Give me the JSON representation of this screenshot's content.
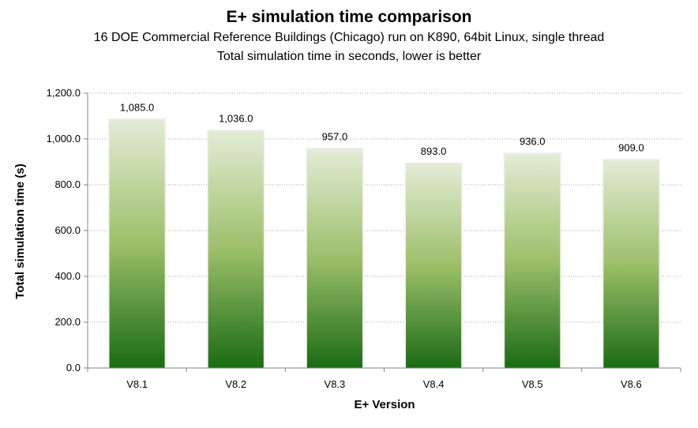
{
  "chart_data": {
    "type": "bar",
    "title": "E+ simulation time comparison",
    "subtitle": [
      "16 DOE Commercial Reference Buildings (Chicago) run on K890, 64bit Linux, single thread",
      "Total simulation time in seconds, lower is better"
    ],
    "xlabel": "E+ Version",
    "ylabel": "Total simulation time (s)",
    "categories": [
      "V8.1",
      "V8.2",
      "V8.3",
      "V8.4",
      "V8.5",
      "V8.6"
    ],
    "values": [
      1085.0,
      1036.0,
      957.0,
      893.0,
      936.0,
      909.0
    ],
    "data_labels": [
      "1,085.0",
      "1,036.0",
      "957.0",
      "893.0",
      "936.0",
      "909.0"
    ],
    "ylim": [
      0,
      1200
    ],
    "yticks": [
      0,
      200,
      400,
      600,
      800,
      1000,
      1200
    ],
    "ytick_labels": [
      "0.0",
      "200.0",
      "400.0",
      "600.0",
      "800.0",
      "1,000.0",
      "1,200.0"
    ],
    "grid": true,
    "legend": "none",
    "colors": {
      "bar_top": "#e3ecd6",
      "bar_mid": "#9dbf6a",
      "bar_bottom": "#1a6b14",
      "grid": "#a6a6a6",
      "axis": "#868686"
    }
  }
}
